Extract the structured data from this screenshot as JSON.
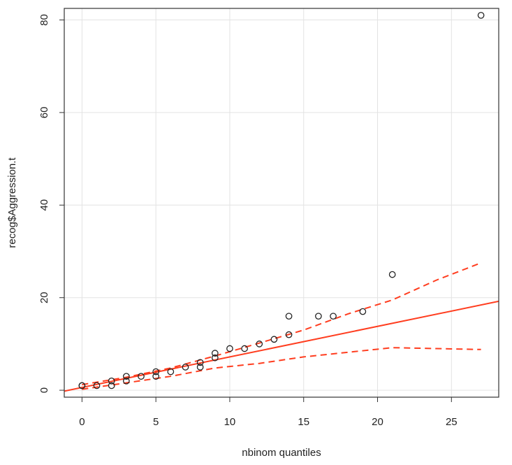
{
  "chart_data": {
    "type": "scatter",
    "title": "",
    "xlabel": "nbinom quantiles",
    "ylabel": "recog$Aggression.t",
    "xlim": [
      -1.2,
      28.2
    ],
    "ylim": [
      -1.5,
      82.5
    ],
    "x_ticks": [
      0,
      5,
      10,
      15,
      20,
      25
    ],
    "y_ticks": [
      0,
      20,
      40,
      60,
      80
    ],
    "grid": true,
    "points": [
      {
        "x": 0,
        "y": 1
      },
      {
        "x": 0,
        "y": 1
      },
      {
        "x": 1,
        "y": 1
      },
      {
        "x": 2,
        "y": 1
      },
      {
        "x": 2,
        "y": 2
      },
      {
        "x": 3,
        "y": 2
      },
      {
        "x": 3,
        "y": 3
      },
      {
        "x": 4,
        "y": 3
      },
      {
        "x": 5,
        "y": 3
      },
      {
        "x": 5,
        "y": 4
      },
      {
        "x": 6,
        "y": 4
      },
      {
        "x": 7,
        "y": 5
      },
      {
        "x": 8,
        "y": 5
      },
      {
        "x": 8,
        "y": 6
      },
      {
        "x": 9,
        "y": 7
      },
      {
        "x": 9,
        "y": 8
      },
      {
        "x": 10,
        "y": 9
      },
      {
        "x": 11,
        "y": 9
      },
      {
        "x": 12,
        "y": 10
      },
      {
        "x": 13,
        "y": 11
      },
      {
        "x": 14,
        "y": 12
      },
      {
        "x": 14,
        "y": 16
      },
      {
        "x": 16,
        "y": 16
      },
      {
        "x": 17,
        "y": 16
      },
      {
        "x": 19,
        "y": 17
      },
      {
        "x": 21,
        "y": 25
      },
      {
        "x": 27,
        "y": 81
      }
    ],
    "reference_line": {
      "color": "#ff3d1f",
      "intercept": 0.6,
      "slope": 0.66
    },
    "envelope_upper": [
      [
        0,
        1.2
      ],
      [
        3,
        2.8
      ],
      [
        6,
        4.8
      ],
      [
        9,
        7.4
      ],
      [
        12,
        10.2
      ],
      [
        15,
        13.0
      ],
      [
        18,
        16.5
      ],
      [
        21,
        19.5
      ],
      [
        24,
        23.8
      ],
      [
        27,
        27.5
      ]
    ],
    "envelope_lower": [
      [
        0,
        0.2
      ],
      [
        3,
        1.6
      ],
      [
        6,
        3.0
      ],
      [
        9,
        4.8
      ],
      [
        12,
        5.8
      ],
      [
        15,
        7.2
      ],
      [
        18,
        8.2
      ],
      [
        21,
        9.2
      ],
      [
        24,
        9.0
      ],
      [
        27,
        8.8
      ]
    ],
    "colors": {
      "points": "#222222",
      "lines": "#ff3d1f",
      "grid": "#e3e3e3"
    }
  }
}
